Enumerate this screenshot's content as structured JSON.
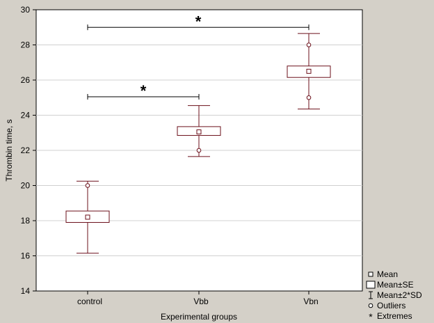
{
  "chart_data": {
    "type": "box",
    "xlabel": "Experimental groups",
    "ylabel": "Thrombin time, s",
    "ylim": [
      14,
      30
    ],
    "yticks": [
      14,
      16,
      18,
      20,
      22,
      24,
      26,
      28,
      30
    ],
    "grid": true,
    "legend_position": "bottom-right",
    "categories": [
      "control",
      "Vbb",
      "Vbn"
    ],
    "groups": [
      {
        "category": "control",
        "mean": 18.2,
        "se_low": 17.9,
        "se_high": 18.55,
        "sd2_low": 16.15,
        "sd2_high": 20.25,
        "outliers": [
          20.0
        ]
      },
      {
        "category": "Vbb",
        "mean": 23.05,
        "se_low": 22.85,
        "se_high": 23.35,
        "sd2_low": 21.65,
        "sd2_high": 24.55,
        "outliers": [
          22.0
        ]
      },
      {
        "category": "Vbn",
        "mean": 26.5,
        "se_low": 26.15,
        "se_high": 26.8,
        "sd2_low": 24.35,
        "sd2_high": 28.65,
        "outliers": [
          28.0,
          25.0
        ]
      }
    ],
    "significance": [
      {
        "from": "control",
        "to": "Vbb",
        "y": 25.05,
        "label": "*"
      },
      {
        "from": "control",
        "to": "Vbn",
        "y": 29.0,
        "label": "*"
      }
    ],
    "legend": [
      "Mean",
      "Mean±SE",
      "Mean±2*SD",
      "Outliers",
      "Extremes"
    ],
    "colors": {
      "box": "#6b0f1a",
      "grid": "#d0d0d0",
      "background": "#d4d0c8",
      "plot": "#ffffff"
    }
  }
}
